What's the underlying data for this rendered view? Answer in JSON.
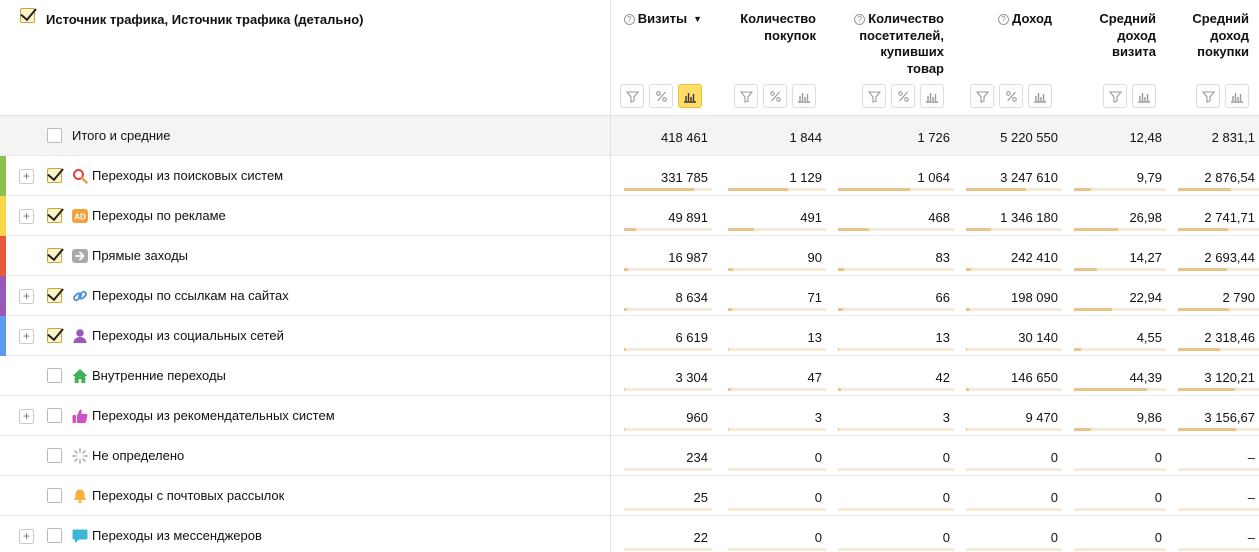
{
  "header": {
    "dimension_title": "Источник трафика, Источник трафика (детально)",
    "sort_indicator": "▼",
    "help_glyph": "?"
  },
  "columns": [
    {
      "id": "visits",
      "title": [
        "Визиты"
      ],
      "help": true,
      "sorted": true,
      "tools": [
        "filter-icon",
        "percent-icon",
        "bar-chart-icon"
      ],
      "active_tool": "bar-chart-icon"
    },
    {
      "id": "purchases",
      "title": [
        "Количество",
        "покупок"
      ],
      "help": false,
      "tools": [
        "filter-icon",
        "percent-icon",
        "bar-chart-icon"
      ]
    },
    {
      "id": "buyers",
      "title": [
        "Количество",
        "посетителей,",
        "купивших",
        "товар"
      ],
      "help": true,
      "tools": [
        "filter-icon",
        "percent-icon",
        "bar-chart-icon"
      ]
    },
    {
      "id": "revenue",
      "title": [
        "Доход"
      ],
      "help": true,
      "tools": [
        "filter-icon",
        "percent-icon",
        "bar-chart-icon"
      ]
    },
    {
      "id": "avg_visit",
      "title": [
        "Средний",
        "доход",
        "визита"
      ],
      "help": false,
      "tools": [
        "filter-icon",
        "bar-chart-icon"
      ]
    },
    {
      "id": "avg_purchase",
      "title": [
        "Средний",
        "доход",
        "покупки"
      ],
      "help": false,
      "tools": [
        "filter-icon",
        "bar-chart-icon"
      ]
    }
  ],
  "total": {
    "label": "Итого и средние",
    "values": [
      "418 461",
      "1 844",
      "1 726",
      "5 220 550",
      "12,48",
      "2 831,1"
    ]
  },
  "rows": [
    {
      "label": "Переходы из поисковых систем",
      "expand": true,
      "checked": true,
      "stripe": "#8cc152",
      "icon": "search-icon",
      "values": [
        "331 785",
        "1 129",
        "1 064",
        "3 247 610",
        "9,79",
        "2 876,54"
      ],
      "shares": [
        0.79,
        0.61,
        0.62,
        0.62,
        0.18,
        0.65
      ]
    },
    {
      "label": "Переходы по рекламе",
      "expand": true,
      "checked": true,
      "stripe": "#f7d64a",
      "icon": "ad-icon",
      "values": [
        "49 891",
        "491",
        "468",
        "1 346 180",
        "26,98",
        "2 741,71"
      ],
      "shares": [
        0.14,
        0.27,
        0.27,
        0.26,
        0.48,
        0.62
      ]
    },
    {
      "label": "Прямые заходы",
      "expand": false,
      "checked": true,
      "stripe": "#e9573f",
      "icon": "arrow-right-icon",
      "values": [
        "16 987",
        "90",
        "83",
        "242 410",
        "14,27",
        "2 693,44"
      ],
      "shares": [
        0.05,
        0.05,
        0.05,
        0.05,
        0.25,
        0.61
      ]
    },
    {
      "label": "Переходы по ссылкам на сайтах",
      "expand": true,
      "checked": true,
      "stripe": "#9b59b6",
      "icon": "link-icon",
      "values": [
        "8 634",
        "71",
        "66",
        "198 090",
        "22,94",
        "2 790"
      ],
      "shares": [
        0.03,
        0.04,
        0.04,
        0.04,
        0.41,
        0.63
      ]
    },
    {
      "label": "Переходы из социальных сетей",
      "expand": true,
      "checked": true,
      "stripe": "#5d9cec",
      "icon": "social-icon",
      "values": [
        "6 619",
        "13",
        "13",
        "30 140",
        "4,55",
        "2 318,46"
      ],
      "shares": [
        0.02,
        0.01,
        0.01,
        0.01,
        0.08,
        0.52
      ]
    },
    {
      "label": "Внутренние переходы",
      "expand": false,
      "checked": false,
      "stripe": "",
      "icon": "home-icon",
      "values": [
        "3 304",
        "47",
        "42",
        "146 650",
        "44,39",
        "3 120,21"
      ],
      "shares": [
        0.01,
        0.03,
        0.03,
        0.03,
        0.79,
        0.7
      ]
    },
    {
      "label": "Переходы из рекомендательных систем",
      "expand": true,
      "checked": false,
      "stripe": "",
      "icon": "thumbs-up-icon",
      "values": [
        "960",
        "3",
        "3",
        "9 470",
        "9,86",
        "3 156,67"
      ],
      "shares": [
        0.005,
        0.005,
        0.005,
        0.005,
        0.18,
        0.71
      ]
    },
    {
      "label": "Не определено",
      "expand": false,
      "checked": false,
      "stripe": "",
      "icon": "spinner-icon",
      "values": [
        "234",
        "0",
        "0",
        "0",
        "0",
        "–"
      ],
      "shares": [
        0,
        0,
        0,
        0,
        0,
        0
      ]
    },
    {
      "label": "Переходы с почтовых рассылок",
      "expand": false,
      "checked": false,
      "stripe": "",
      "icon": "bell-icon",
      "values": [
        "25",
        "0",
        "0",
        "0",
        "0",
        "–"
      ],
      "shares": [
        0,
        0,
        0,
        0,
        0,
        0
      ]
    },
    {
      "label": "Переходы из мессенджеров",
      "expand": true,
      "checked": false,
      "stripe": "",
      "icon": "chat-icon",
      "values": [
        "22",
        "0",
        "0",
        "0",
        "0",
        "–"
      ],
      "shares": [
        0,
        0,
        0,
        0,
        0,
        0
      ]
    }
  ]
}
